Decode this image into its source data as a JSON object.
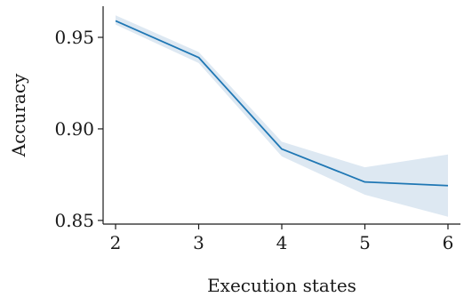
{
  "chart_data": {
    "type": "line",
    "title": "",
    "xlabel": "Execution states",
    "ylabel": "Accuracy",
    "xlim": [
      1.85,
      6.15
    ],
    "ylim": [
      0.848,
      0.967
    ],
    "xticks": [
      2,
      3,
      4,
      5,
      6
    ],
    "xtick_labels": [
      "2",
      "3",
      "4",
      "5",
      "6"
    ],
    "yticks": [
      0.85,
      0.9,
      0.95
    ],
    "ytick_labels": [
      "0.85",
      "0.90",
      "0.95"
    ],
    "grid": false,
    "legend": "none",
    "series": [
      {
        "x": [
          2,
          3,
          4,
          5,
          6
        ],
        "values": [
          0.959,
          0.939,
          0.889,
          0.871,
          0.869
        ],
        "lower": [
          0.957,
          0.936,
          0.885,
          0.864,
          0.852
        ],
        "upper": [
          0.962,
          0.942,
          0.893,
          0.879,
          0.886
        ],
        "color": "#1f77b4",
        "band_color": "#dde8f2"
      }
    ]
  }
}
